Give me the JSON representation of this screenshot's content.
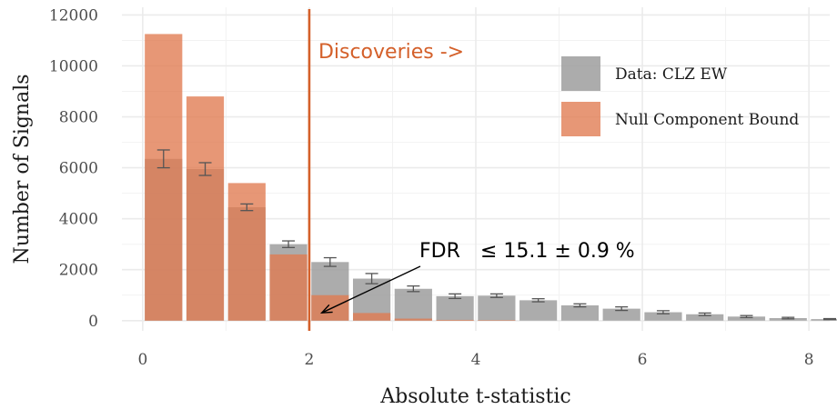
{
  "chart_data": {
    "type": "bar",
    "xlabel": "Absolute t-statistic",
    "ylabel": "Number of Signals",
    "xlim": [
      -0.25,
      8.25
    ],
    "ylim": [
      -400,
      12300
    ],
    "x_ticks": [
      0,
      2,
      4,
      6,
      8
    ],
    "y_ticks": [
      0,
      2000,
      4000,
      6000,
      8000,
      10000,
      12000
    ],
    "grid": true,
    "legend_position": "top-right",
    "bin_width": 0.5,
    "bin_centers": [
      0.25,
      0.75,
      1.25,
      1.75,
      2.25,
      2.75,
      3.25,
      3.75,
      4.25,
      4.75,
      5.25,
      5.75,
      6.25,
      6.75,
      7.25,
      7.75,
      8.25
    ],
    "series": [
      {
        "name": "Data: CLZ EW",
        "color": "#9e9e9e",
        "values": [
          6350,
          5950,
          4450,
          3000,
          2300,
          1650,
          1250,
          960,
          980,
          800,
          600,
          470,
          330,
          250,
          160,
          100,
          60
        ],
        "error": [
          350,
          250,
          130,
          130,
          170,
          200,
          110,
          90,
          70,
          60,
          60,
          70,
          60,
          50,
          40,
          30,
          20
        ]
      },
      {
        "name": "Null Component Bound",
        "color": "#e07a50",
        "values": [
          11250,
          8800,
          5400,
          2600,
          1000,
          300,
          80,
          30,
          20,
          0,
          0,
          0,
          0,
          0,
          0,
          0,
          0
        ]
      }
    ],
    "threshold": {
      "x": 2.0,
      "label": "Discoveries ->",
      "color": "#d4602a"
    },
    "annotation": {
      "text_prefix": "FDR",
      "text_value": "≤ 15.1 ± 0.9 %",
      "arrow_target_x": 2.15,
      "arrow_target_y": 200
    }
  }
}
